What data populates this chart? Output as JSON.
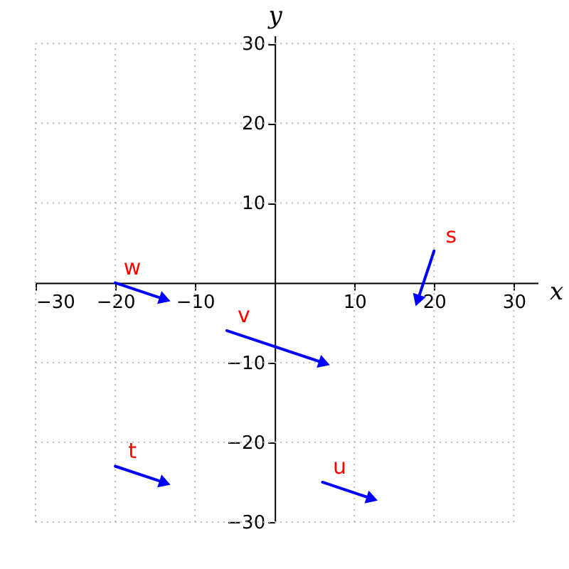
{
  "chart_data": {
    "type": "line",
    "xlabel": "x",
    "ylabel": "y",
    "xlim": [
      -30,
      33
    ],
    "ylim": [
      -30,
      31
    ],
    "xticks": [
      -30,
      -20,
      -10,
      10,
      20,
      30
    ],
    "yticks": [
      -30,
      -20,
      -10,
      10,
      20,
      30
    ],
    "grid": true,
    "line_style": "solid",
    "series": [
      {
        "name": "w",
        "color": "#0000ff",
        "x": [
          -20,
          -14
        ],
        "values": [
          0,
          -2
        ]
      },
      {
        "name": "t",
        "color": "#0000ff",
        "x": [
          -20,
          -14
        ],
        "values": [
          -23,
          -25
        ]
      },
      {
        "name": "v",
        "color": "#0000ff",
        "x": [
          -6,
          6
        ],
        "values": [
          -6,
          -10
        ]
      },
      {
        "name": "u",
        "color": "#0000ff",
        "x": [
          6,
          12
        ],
        "values": [
          -25,
          -27
        ]
      },
      {
        "name": "s",
        "color": "#0000ff",
        "x": [
          20,
          18
        ],
        "values": [
          4,
          -2
        ]
      }
    ]
  }
}
